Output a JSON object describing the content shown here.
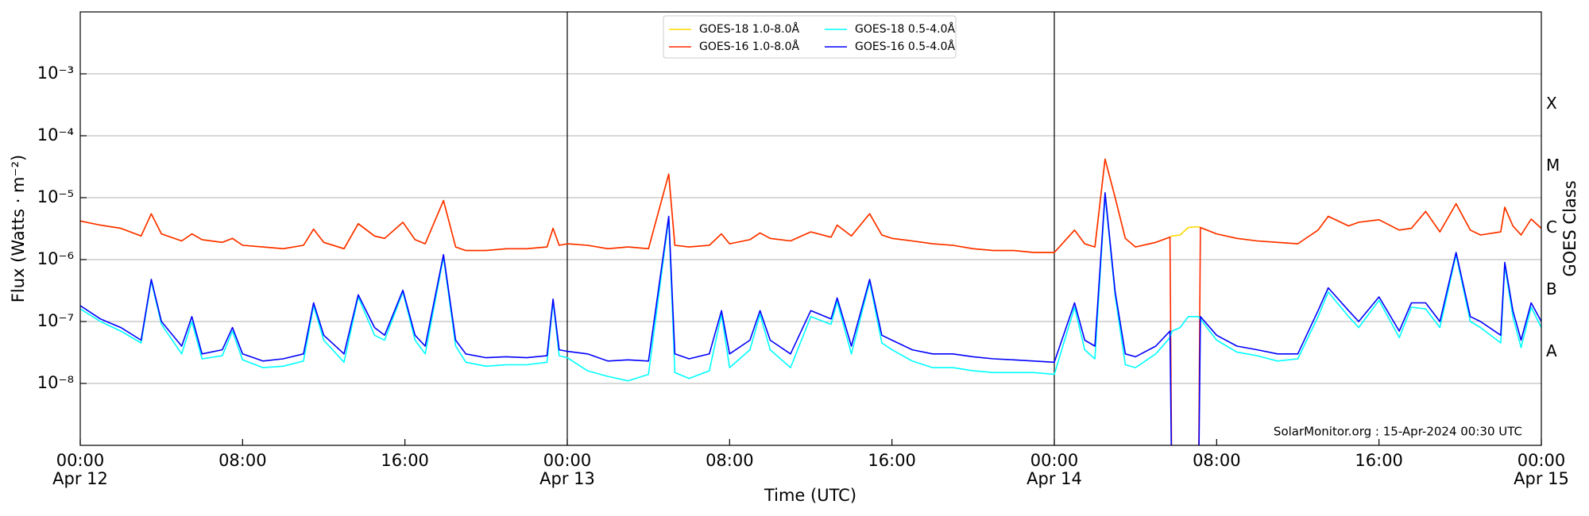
{
  "chart_data": {
    "type": "line",
    "xlabel": "Time (UTC)",
    "ylabel": "Flux (Watts · m⁻²)",
    "y2label": "GOES Class",
    "annotation": "SolarMonitor.org : 15-Apr-2024 00:30 UTC",
    "yscale": "log",
    "grid": true,
    "legend": "upper center",
    "xlim": [
      0,
      72
    ],
    "xticks": [
      {
        "value": 0,
        "label": "00:00\nApr 12"
      },
      {
        "value": 8,
        "label": "08:00"
      },
      {
        "value": 16,
        "label": "16:00"
      },
      {
        "value": 24,
        "label": "00:00\nApr 13"
      },
      {
        "value": 32,
        "label": "08:00"
      },
      {
        "value": 40,
        "label": "16:00"
      },
      {
        "value": 48,
        "label": "00:00\nApr 14"
      },
      {
        "value": 56,
        "label": "08:00"
      },
      {
        "value": 64,
        "label": "16:00"
      },
      {
        "value": 72,
        "label": "00:00\nApr 15"
      }
    ],
    "vlines": [
      24,
      48
    ],
    "ylim": [
      1e-09,
      0.01
    ],
    "yticks": [
      {
        "value": 1e-08,
        "label": "10⁻⁸"
      },
      {
        "value": 1e-07,
        "label": "10⁻⁷"
      },
      {
        "value": 1e-06,
        "label": "10⁻⁶"
      },
      {
        "value": 1e-05,
        "label": "10⁻⁵"
      },
      {
        "value": 0.0001,
        "label": "10⁻⁴"
      },
      {
        "value": 0.001,
        "label": "10⁻³"
      }
    ],
    "y2lim": [
      1e-09,
      0.01
    ],
    "y2ticks": [
      {
        "value": 3.2e-08,
        "label": "A"
      },
      {
        "value": 3.2e-07,
        "label": "B"
      },
      {
        "value": 3.2e-06,
        "label": "C"
      },
      {
        "value": 3.2e-05,
        "label": "M"
      },
      {
        "value": 0.00032,
        "label": "X"
      }
    ],
    "x": [
      0,
      1,
      2,
      3,
      3.5,
      4,
      5,
      5.5,
      6,
      7,
      7.5,
      8,
      9,
      10,
      11,
      11.5,
      12,
      13,
      13.7,
      14.5,
      15,
      15.9,
      16.5,
      17,
      17.9,
      18.5,
      19,
      20,
      21,
      22,
      23,
      23.3,
      23.6,
      24,
      25,
      26,
      27,
      28,
      29,
      29.3,
      30,
      31,
      31.6,
      32,
      33,
      33.5,
      34,
      35,
      36,
      37,
      37.3,
      38,
      38.9,
      39.5,
      40,
      41,
      42,
      43,
      44,
      45,
      46,
      47,
      48,
      49,
      49.5,
      50,
      50.5,
      51,
      51.5,
      52,
      53,
      53.7,
      53.8,
      54.2,
      54.6,
      55.1,
      55.2,
      56,
      57,
      58,
      59,
      60,
      61,
      61.5,
      62.5,
      63,
      64,
      65,
      65.6,
      66.3,
      67,
      67.8,
      68.5,
      69,
      70,
      70.2,
      70.6,
      71,
      71.5,
      72
    ],
    "series": [
      {
        "name": "GOES-18 1.0-8.0Å",
        "color": "#ffd700",
        "values": [
          4.2e-06,
          3.6e-06,
          3.2e-06,
          2.4e-06,
          5.5e-06,
          2.6e-06,
          2e-06,
          2.6e-06,
          2.1e-06,
          1.9e-06,
          2.2e-06,
          1.7e-06,
          1.6e-06,
          1.5e-06,
          1.7e-06,
          3.1e-06,
          1.9e-06,
          1.5e-06,
          3.8e-06,
          2.4e-06,
          2.2e-06,
          4e-06,
          2.1e-06,
          1.8e-06,
          9e-06,
          1.6e-06,
          1.4e-06,
          1.4e-06,
          1.5e-06,
          1.5e-06,
          1.6e-06,
          3.2e-06,
          1.7e-06,
          1.8e-06,
          1.7e-06,
          1.5e-06,
          1.6e-06,
          1.5e-06,
          2.4e-05,
          1.7e-06,
          1.6e-06,
          1.7e-06,
          2.6e-06,
          1.8e-06,
          2.1e-06,
          2.7e-06,
          2.2e-06,
          2e-06,
          2.8e-06,
          2.3e-06,
          3.6e-06,
          2.4e-06,
          5.5e-06,
          2.5e-06,
          2.2e-06,
          2e-06,
          1.8e-06,
          1.7e-06,
          1.5e-06,
          1.4e-06,
          1.4e-06,
          1.3e-06,
          1.3e-06,
          3e-06,
          1.8e-06,
          1.6e-06,
          4.2e-05,
          1e-05,
          2.2e-06,
          1.6e-06,
          1.9e-06,
          2.3e-06,
          2.4e-06,
          2.5e-06,
          3.3e-06,
          3.4e-06,
          3.3e-06,
          2.6e-06,
          2.2e-06,
          2e-06,
          1.9e-06,
          1.8e-06,
          3e-06,
          5e-06,
          3.5e-06,
          4e-06,
          4.4e-06,
          3e-06,
          3.2e-06,
          6e-06,
          2.8e-06,
          8e-06,
          3e-06,
          2.5e-06,
          2.8e-06,
          7e-06,
          3.5e-06,
          2.5e-06,
          4.5e-06,
          3.2e-06
        ]
      },
      {
        "name": "GOES-16 1.0-8.0Å",
        "color": "#ff2a00",
        "values": [
          4.2e-06,
          3.6e-06,
          3.2e-06,
          2.4e-06,
          5.5e-06,
          2.6e-06,
          2e-06,
          2.6e-06,
          2.1e-06,
          1.9e-06,
          2.2e-06,
          1.7e-06,
          1.6e-06,
          1.5e-06,
          1.7e-06,
          3.1e-06,
          1.9e-06,
          1.5e-06,
          3.8e-06,
          2.4e-06,
          2.2e-06,
          4e-06,
          2.1e-06,
          1.8e-06,
          9e-06,
          1.6e-06,
          1.4e-06,
          1.4e-06,
          1.5e-06,
          1.5e-06,
          1.6e-06,
          3.2e-06,
          1.7e-06,
          1.8e-06,
          1.7e-06,
          1.5e-06,
          1.6e-06,
          1.5e-06,
          2.4e-05,
          1.7e-06,
          1.6e-06,
          1.7e-06,
          2.6e-06,
          1.8e-06,
          2.1e-06,
          2.7e-06,
          2.2e-06,
          2e-06,
          2.8e-06,
          2.3e-06,
          3.6e-06,
          2.4e-06,
          5.5e-06,
          2.5e-06,
          2.2e-06,
          2e-06,
          1.8e-06,
          1.7e-06,
          1.5e-06,
          1.4e-06,
          1.4e-06,
          1.3e-06,
          1.3e-06,
          3e-06,
          1.8e-06,
          1.6e-06,
          4.2e-05,
          1e-05,
          2.2e-06,
          1.6e-06,
          1.9e-06,
          2.3e-06,
          1e-10,
          null,
          null,
          1e-10,
          3.3e-06,
          2.6e-06,
          2.2e-06,
          2e-06,
          1.9e-06,
          1.8e-06,
          3e-06,
          5e-06,
          3.5e-06,
          4e-06,
          4.4e-06,
          3e-06,
          3.2e-06,
          6e-06,
          2.8e-06,
          8e-06,
          3e-06,
          2.5e-06,
          2.8e-06,
          7e-06,
          3.5e-06,
          2.5e-06,
          4.5e-06,
          3.2e-06
        ]
      },
      {
        "name": "GOES-18 0.5-4.0Å",
        "color": "#00ffff",
        "values": [
          1.6e-07,
          1e-07,
          7e-08,
          4.5e-08,
          4.5e-07,
          9e-08,
          3e-08,
          1e-07,
          2.5e-08,
          2.8e-08,
          7e-08,
          2.4e-08,
          1.8e-08,
          1.9e-08,
          2.3e-08,
          1.8e-07,
          5e-08,
          2.2e-08,
          2.5e-07,
          6e-08,
          5e-08,
          3e-07,
          5e-08,
          3e-08,
          1.1e-06,
          4e-08,
          2.2e-08,
          1.9e-08,
          2e-08,
          2e-08,
          2.2e-08,
          2.1e-07,
          2.8e-08,
          2.6e-08,
          1.6e-08,
          1.3e-08,
          1.1e-08,
          1.4e-08,
          4.6e-06,
          1.5e-08,
          1.2e-08,
          1.6e-08,
          1.3e-07,
          1.8e-08,
          3.5e-08,
          1.3e-07,
          3.5e-08,
          1.8e-08,
          1.2e-07,
          9e-08,
          2.1e-07,
          3e-08,
          4.4e-07,
          4.5e-08,
          3.5e-08,
          2.3e-08,
          1.8e-08,
          1.8e-08,
          1.6e-08,
          1.5e-08,
          1.5e-08,
          1.5e-08,
          1.4e-08,
          1.7e-07,
          3.5e-08,
          2.5e-08,
          1.1e-05,
          2.6e-07,
          2e-08,
          1.8e-08,
          3e-08,
          5.5e-08,
          7e-08,
          8e-08,
          1.2e-07,
          1.2e-07,
          1.1e-07,
          5e-08,
          3.2e-08,
          2.8e-08,
          2.3e-08,
          2.5e-08,
          1.2e-07,
          3e-07,
          1.2e-07,
          8e-08,
          2.2e-07,
          5.5e-08,
          1.7e-07,
          1.6e-07,
          8e-08,
          1.2e-06,
          1e-07,
          8e-08,
          4.5e-08,
          8e-07,
          1.2e-07,
          3.8e-08,
          1.7e-07,
          8e-08
        ]
      },
      {
        "name": "GOES-16 0.5-4.0Å",
        "color": "#0000ff",
        "values": [
          1.8e-07,
          1.1e-07,
          8e-08,
          5e-08,
          4.8e-07,
          1e-07,
          4e-08,
          1.2e-07,
          3e-08,
          3.5e-08,
          8e-08,
          3e-08,
          2.3e-08,
          2.5e-08,
          3e-08,
          2e-07,
          6e-08,
          3e-08,
          2.7e-07,
          8e-08,
          6e-08,
          3.2e-07,
          6e-08,
          4e-08,
          1.2e-06,
          5e-08,
          3e-08,
          2.6e-08,
          2.7e-08,
          2.6e-08,
          2.8e-08,
          2.3e-07,
          3.5e-08,
          3.3e-08,
          3e-08,
          2.3e-08,
          2.4e-08,
          2.3e-08,
          5e-06,
          3e-08,
          2.5e-08,
          3e-08,
          1.5e-07,
          3e-08,
          5e-08,
          1.5e-07,
          5e-08,
          3e-08,
          1.5e-07,
          1.1e-07,
          2.4e-07,
          4e-08,
          4.8e-07,
          6e-08,
          5e-08,
          3.5e-08,
          3e-08,
          3e-08,
          2.7e-08,
          2.5e-08,
          2.4e-08,
          2.3e-08,
          2.2e-08,
          2e-07,
          5e-08,
          4e-08,
          1.2e-05,
          3e-07,
          3e-08,
          2.7e-08,
          4e-08,
          7e-08,
          1e-10,
          null,
          null,
          1e-10,
          1.2e-07,
          6e-08,
          4e-08,
          3.5e-08,
          3e-08,
          3e-08,
          1.5e-07,
          3.5e-07,
          1.5e-07,
          1e-07,
          2.5e-07,
          7e-08,
          2e-07,
          2e-07,
          1e-07,
          1.3e-06,
          1.2e-07,
          1e-07,
          6e-08,
          9e-07,
          1.5e-07,
          5e-08,
          2e-07,
          1e-07
        ]
      }
    ]
  }
}
